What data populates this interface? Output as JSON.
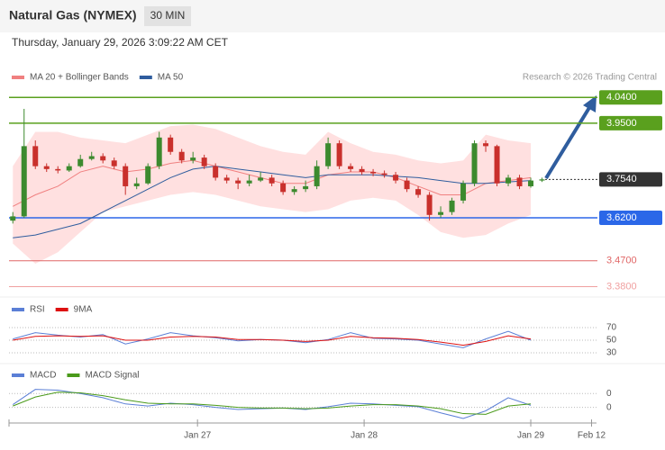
{
  "header": {
    "title": "Natural Gas (NYMEX)",
    "interval": "30 MIN",
    "datetime": "Thursday, January 29, 2026 3:09:22 AM CET",
    "credit": "Research © 2026 Trading Central"
  },
  "chart_data": {
    "type": "candlestick",
    "legend": [
      {
        "name": "MA 20 + Bollinger Bands",
        "color": "#f08080"
      },
      {
        "name": "MA 50",
        "color": "#2f5d9e"
      }
    ],
    "xlim": [
      -0.5,
      52
    ],
    "xticks": [
      {
        "value": 16.4,
        "label": "Jan 27"
      },
      {
        "value": 31.2,
        "label": "Jan 28"
      },
      {
        "value": 46,
        "label": "Jan 29"
      },
      {
        "value": 51.4,
        "label": "Feb 12"
      }
    ],
    "ylim": [
      3.35,
      4.16
    ],
    "up_color": "#3c8a2e",
    "down_color": "#c9302c",
    "candles": [
      [
        3.61,
        3.64,
        3.6,
        3.625
      ],
      [
        3.625,
        4.0,
        3.62,
        3.87
      ],
      [
        3.87,
        3.89,
        3.79,
        3.8
      ],
      [
        3.8,
        3.81,
        3.78,
        3.79
      ],
      [
        3.79,
        3.8,
        3.775,
        3.785
      ],
      [
        3.785,
        3.81,
        3.78,
        3.8
      ],
      [
        3.8,
        3.84,
        3.795,
        3.825
      ],
      [
        3.825,
        3.85,
        3.82,
        3.835
      ],
      [
        3.835,
        3.845,
        3.81,
        3.82
      ],
      [
        3.82,
        3.83,
        3.79,
        3.8
      ],
      [
        3.8,
        3.81,
        3.7,
        3.73
      ],
      [
        3.73,
        3.76,
        3.72,
        3.74
      ],
      [
        3.74,
        3.81,
        3.735,
        3.8
      ],
      [
        3.8,
        3.92,
        3.79,
        3.9
      ],
      [
        3.9,
        3.91,
        3.84,
        3.85
      ],
      [
        3.85,
        3.86,
        3.81,
        3.82
      ],
      [
        3.82,
        3.85,
        3.81,
        3.83
      ],
      [
        3.83,
        3.84,
        3.79,
        3.8
      ],
      [
        3.8,
        3.81,
        3.75,
        3.76
      ],
      [
        3.76,
        3.77,
        3.74,
        3.75
      ],
      [
        3.75,
        3.76,
        3.72,
        3.74
      ],
      [
        3.74,
        3.77,
        3.73,
        3.75
      ],
      [
        3.75,
        3.78,
        3.745,
        3.76
      ],
      [
        3.76,
        3.77,
        3.73,
        3.74
      ],
      [
        3.74,
        3.75,
        3.7,
        3.71
      ],
      [
        3.71,
        3.73,
        3.7,
        3.72
      ],
      [
        3.72,
        3.75,
        3.71,
        3.73
      ],
      [
        3.73,
        3.82,
        3.72,
        3.8
      ],
      [
        3.8,
        3.9,
        3.79,
        3.88
      ],
      [
        3.88,
        3.89,
        3.79,
        3.8
      ],
      [
        3.8,
        3.81,
        3.78,
        3.79
      ],
      [
        3.79,
        3.8,
        3.77,
        3.78
      ],
      [
        3.78,
        3.79,
        3.765,
        3.775
      ],
      [
        3.775,
        3.785,
        3.76,
        3.77
      ],
      [
        3.77,
        3.78,
        3.74,
        3.75
      ],
      [
        3.75,
        3.76,
        3.71,
        3.72
      ],
      [
        3.72,
        3.73,
        3.69,
        3.7
      ],
      [
        3.7,
        3.71,
        3.61,
        3.63
      ],
      [
        3.63,
        3.66,
        3.62,
        3.64
      ],
      [
        3.64,
        3.69,
        3.63,
        3.68
      ],
      [
        3.68,
        3.75,
        3.67,
        3.74
      ],
      [
        3.74,
        3.89,
        3.73,
        3.88
      ],
      [
        3.88,
        3.89,
        3.85,
        3.87
      ],
      [
        3.87,
        3.875,
        3.73,
        3.74
      ],
      [
        3.74,
        3.77,
        3.73,
        3.76
      ],
      [
        3.76,
        3.77,
        3.72,
        3.73
      ],
      [
        3.73,
        3.76,
        3.725,
        3.75
      ],
      [
        3.75,
        3.76,
        3.745,
        3.754
      ]
    ],
    "indicators": {
      "x": [
        0,
        2,
        4,
        6,
        8,
        10,
        12,
        14,
        16,
        18,
        20,
        22,
        24,
        26,
        28,
        30,
        32,
        34,
        36,
        38,
        40,
        42,
        44,
        46
      ],
      "upper": [
        3.8,
        3.92,
        3.92,
        3.9,
        3.89,
        3.88,
        3.91,
        3.94,
        3.945,
        3.93,
        3.9,
        3.87,
        3.85,
        3.84,
        3.92,
        3.88,
        3.85,
        3.84,
        3.82,
        3.81,
        3.82,
        3.91,
        3.89,
        3.88
      ],
      "lower": [
        3.53,
        3.46,
        3.5,
        3.57,
        3.64,
        3.66,
        3.68,
        3.7,
        3.71,
        3.7,
        3.68,
        3.66,
        3.65,
        3.64,
        3.65,
        3.68,
        3.69,
        3.68,
        3.63,
        3.57,
        3.55,
        3.56,
        3.6,
        3.63
      ],
      "ma20": [
        3.66,
        3.7,
        3.73,
        3.78,
        3.8,
        3.78,
        3.79,
        3.81,
        3.82,
        3.8,
        3.78,
        3.76,
        3.74,
        3.74,
        3.77,
        3.78,
        3.78,
        3.76,
        3.73,
        3.7,
        3.7,
        3.74,
        3.75,
        3.76
      ],
      "ma50": [
        3.55,
        3.56,
        3.58,
        3.6,
        3.64,
        3.68,
        3.72,
        3.76,
        3.79,
        3.8,
        3.79,
        3.78,
        3.77,
        3.76,
        3.77,
        3.77,
        3.77,
        3.765,
        3.76,
        3.75,
        3.74,
        3.74,
        3.745,
        3.75
      ]
    },
    "levels": [
      {
        "value": 4.04,
        "label": "4.0400",
        "color": "#5aa01e",
        "tag": true
      },
      {
        "value": 3.95,
        "label": "3.9500",
        "color": "#5aa01e",
        "tag": true
      },
      {
        "value": 3.754,
        "label": "3.7540",
        "color": "#333333",
        "tag": true,
        "dashed": true
      },
      {
        "value": 3.62,
        "label": "3.6200",
        "color": "#2b67e8",
        "tag": true
      },
      {
        "value": 3.47,
        "label": "3.4700",
        "color": "#e06666",
        "tag": false
      },
      {
        "value": 3.38,
        "label": "3.3800",
        "color": "#f0a0a0",
        "tag": false
      }
    ],
    "rsi": {
      "ylim": [
        20,
        80
      ],
      "yticks": [
        70,
        50,
        30
      ],
      "series": [
        {
          "name": "RSI",
          "color": "#5b7fd6",
          "values": [
            52,
            62,
            58,
            55,
            59,
            44,
            52,
            62,
            57,
            54,
            49,
            51,
            50,
            46,
            51,
            62,
            53,
            52,
            50,
            44,
            38,
            52,
            64,
            50
          ]
        },
        {
          "name": "9MA",
          "color": "#dd1111",
          "values": [
            50,
            56,
            57,
            56,
            57,
            50,
            50,
            55,
            56,
            55,
            51,
            51,
            50,
            48,
            50,
            56,
            54,
            53,
            51,
            47,
            42,
            48,
            57,
            52
          ]
        }
      ]
    },
    "macd": {
      "ylim": [
        -0.02,
        0.036
      ],
      "yticks": [
        {
          "value": 0.02,
          "label": "0"
        },
        {
          "value": 0,
          "label": "0"
        }
      ],
      "series": [
        {
          "name": "MACD",
          "color": "#5b7fd6",
          "values": [
            0.004,
            0.026,
            0.025,
            0.02,
            0.014,
            0.005,
            0.002,
            0.006,
            0.004,
            0.0,
            -0.003,
            -0.002,
            -0.001,
            -0.003,
            0.001,
            0.006,
            0.005,
            0.003,
            0.001,
            -0.008,
            -0.016,
            -0.005,
            0.014,
            0.003
          ]
        },
        {
          "name": "MACD Signal",
          "color": "#4a9a1a",
          "values": [
            0.002,
            0.015,
            0.022,
            0.021,
            0.017,
            0.011,
            0.006,
            0.005,
            0.005,
            0.003,
            0.0,
            -0.001,
            -0.001,
            -0.002,
            -0.001,
            0.002,
            0.004,
            0.004,
            0.002,
            -0.002,
            -0.009,
            -0.01,
            0.002,
            0.005
          ]
        }
      ]
    }
  }
}
